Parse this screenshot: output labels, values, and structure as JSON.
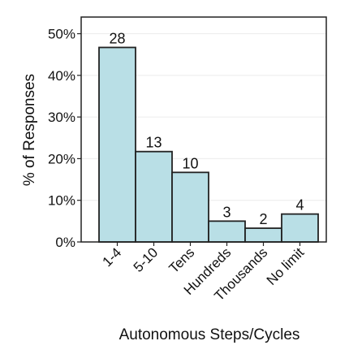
{
  "chart_data": {
    "type": "bar",
    "categories": [
      "1-4",
      "5-10",
      "Tens",
      "Hundreds",
      "Thousands",
      "No limit"
    ],
    "values": [
      46.7,
      21.7,
      16.7,
      5.0,
      3.3,
      6.7
    ],
    "data_labels": [
      "28",
      "13",
      "10",
      "3",
      "2",
      "4"
    ],
    "title": "",
    "xlabel": "Autonomous Steps/Cycles",
    "ylabel": "% of Responses",
    "ylim": [
      0,
      54
    ],
    "yticks": [
      0,
      10,
      20,
      30,
      40,
      50
    ],
    "ytick_labels": [
      "0%",
      "10%",
      "20%",
      "30%",
      "40%",
      "50%"
    ],
    "grid": "y",
    "bar_color": "#b9dfe6",
    "edge_color": "#222222"
  }
}
